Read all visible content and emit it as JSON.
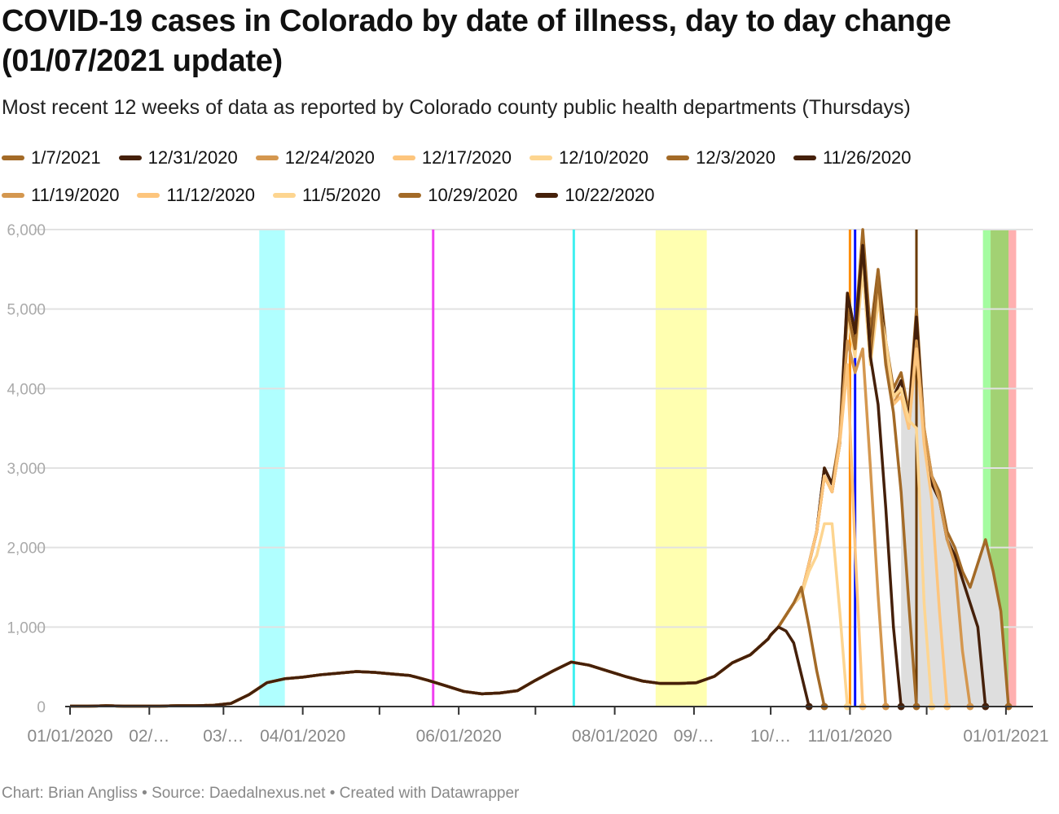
{
  "chart_data": {
    "type": "line",
    "title": "COVID-19 cases in Colorado by date of illness, day to day change (01/07/2021 update)",
    "subtitle": "Most recent 12 weeks of data as reported by Colorado county public health departments (Thursdays)",
    "footer": "Chart: Brian Angliss • Source: Daedalnexus.net • Created with Datawrapper",
    "xlabel": "",
    "ylabel": "",
    "ylim": [
      0,
      6000
    ],
    "xlim": [
      "2020-01-01",
      "2021-01-07"
    ],
    "y_ticks": [
      {
        "value": 0,
        "label": "0"
      },
      {
        "value": 1000,
        "label": "1,000"
      },
      {
        "value": 2000,
        "label": "2,000"
      },
      {
        "value": 3000,
        "label": "3,000"
      },
      {
        "value": 4000,
        "label": "4,000"
      },
      {
        "value": 5000,
        "label": "5,000"
      },
      {
        "value": 6000,
        "label": "6,000"
      }
    ],
    "x_tick_dates": [
      "2020-01-01",
      "2020-02-01",
      "2020-03-01",
      "2020-04-01",
      "2020-05-01",
      "2020-06-01",
      "2020-07-01",
      "2020-08-01",
      "2020-09-01",
      "2020-10-01",
      "2020-11-01",
      "2020-12-01",
      "2021-01-01"
    ],
    "x_labels": [
      {
        "date": "2020-01-01",
        "label": "01/01/2020"
      },
      {
        "date": "2020-02-01",
        "label": "02/…"
      },
      {
        "date": "2020-03-01",
        "label": "03/…"
      },
      {
        "date": "2020-04-01",
        "label": "04/01/2020"
      },
      {
        "date": "2020-06-01",
        "label": "06/01/2020"
      },
      {
        "date": "2020-08-01",
        "label": "08/01/2020"
      },
      {
        "date": "2020-09-01",
        "label": "09/…"
      },
      {
        "date": "2020-10-01",
        "label": "10/…"
      },
      {
        "date": "2020-11-01",
        "label": "11/01/2020"
      },
      {
        "date": "2021-01-01",
        "label": "01/01/2021"
      }
    ],
    "grid": true,
    "legend_position": "top-left",
    "shared_history": {
      "start": "2020-01-01",
      "step_days": 7,
      "values": [
        5,
        5,
        10,
        5,
        5,
        5,
        10,
        10,
        15,
        40,
        150,
        300,
        350,
        370,
        400,
        420,
        440,
        430,
        410,
        390,
        330,
        260,
        190,
        160,
        170,
        200,
        330,
        450,
        560,
        520,
        450,
        380,
        320,
        290,
        290,
        300,
        380,
        550,
        650,
        850
      ]
    },
    "recent_start": "2020-10-01",
    "recent_step_days": 3,
    "series": [
      {
        "name": "1/7/2021",
        "color": "#a36a27",
        "values": [
          900,
          1000,
          1150,
          1300,
          1400,
          1800,
          2200,
          3000,
          2800,
          3400,
          5200,
          4700,
          6000,
          4700,
          5500,
          4600,
          4000,
          4200,
          3700,
          5000,
          3500,
          2900,
          2700,
          2200,
          2000,
          1700,
          1500,
          1800,
          2100,
          1700,
          1200,
          0
        ]
      },
      {
        "name": "12/31/2020",
        "color": "#45200a",
        "values": [
          900,
          1000,
          1150,
          1300,
          1400,
          1800,
          2200,
          3000,
          2800,
          3300,
          5100,
          4600,
          5800,
          4500,
          5400,
          4500,
          3900,
          4100,
          3600,
          4900,
          3400,
          2800,
          2600,
          2100,
          1900,
          1600,
          1300,
          1000,
          0
        ]
      },
      {
        "name": "12/24/2020",
        "color": "#d4974f",
        "values": [
          900,
          1000,
          1150,
          1300,
          1400,
          1800,
          2200,
          2900,
          2700,
          3300,
          5000,
          4500,
          5700,
          4400,
          5300,
          4400,
          3800,
          4000,
          3500,
          4600,
          3500,
          2900,
          2600,
          2100,
          1800,
          700,
          0
        ]
      },
      {
        "name": "12/17/2020",
        "color": "#fdc57d",
        "values": [
          900,
          1000,
          1150,
          1300,
          1400,
          1800,
          2200,
          2900,
          2700,
          3300,
          5000,
          4500,
          5600,
          4400,
          5200,
          4300,
          3800,
          3900,
          3500,
          4500,
          3300,
          2600,
          1200,
          0
        ]
      },
      {
        "name": "12/10/2020",
        "color": "#fdd590",
        "values": [
          900,
          1000,
          1150,
          1300,
          1400,
          1800,
          2200,
          2900,
          2700,
          3300,
          4900,
          4400,
          5500,
          4300,
          5100,
          4600,
          3900,
          4000,
          3600,
          3500,
          1300,
          0
        ]
      },
      {
        "name": "12/3/2020",
        "color": "#a36a27",
        "values": [
          900,
          1000,
          1150,
          1300,
          1400,
          1800,
          2200,
          2900,
          2700,
          3300,
          5000,
          4500,
          5800,
          4400,
          5400,
          4300,
          3700,
          2700,
          1300,
          0
        ]
      },
      {
        "name": "11/26/2020",
        "color": "#45200a",
        "values": [
          900,
          1000,
          1150,
          1300,
          1400,
          1800,
          2200,
          3000,
          2800,
          3300,
          5200,
          4700,
          5800,
          4400,
          3800,
          2500,
          1000,
          0
        ]
      },
      {
        "name": "11/19/2020",
        "color": "#d4974f",
        "values": [
          900,
          1000,
          1150,
          1300,
          1400,
          1800,
          2200,
          2900,
          2700,
          3400,
          4600,
          4200,
          4500,
          3000,
          1400,
          0
        ]
      },
      {
        "name": "11/12/2020",
        "color": "#fdc57d",
        "values": [
          900,
          1000,
          1150,
          1300,
          1400,
          1800,
          2200,
          2900,
          2700,
          3300,
          4300,
          2000,
          0
        ]
      },
      {
        "name": "11/5/2020",
        "color": "#fdd590",
        "values": [
          900,
          1000,
          1150,
          1300,
          1400,
          1700,
          1900,
          2300,
          2300,
          1200,
          0
        ]
      },
      {
        "name": "10/29/2020",
        "color": "#a36a27",
        "values": [
          900,
          1000,
          1150,
          1300,
          1500,
          1000,
          450,
          0
        ]
      },
      {
        "name": "10/22/2020",
        "color": "#45200a",
        "values": [
          900,
          1000,
          950,
          800,
          400,
          0
        ]
      }
    ],
    "annotations": {
      "bands": [
        {
          "from": "2020-03-15",
          "to": "2020-03-25",
          "color": "#b0ffff"
        },
        {
          "from": "2020-08-17",
          "to": "2020-09-06",
          "color": "#ffffb0"
        },
        {
          "from": "2020-12-23",
          "to": "2020-12-26",
          "color": "#a4fca0"
        },
        {
          "from": "2020-12-26",
          "to": "2021-01-02",
          "color": "#a2d173"
        },
        {
          "from": "2021-01-02",
          "to": "2021-01-05",
          "color": "#ffb0b0"
        }
      ],
      "lines": [
        {
          "date": "2020-05-22",
          "color": "#f040f0"
        },
        {
          "date": "2020-07-16",
          "color": "#40f0f0"
        },
        {
          "date": "2020-11-01",
          "color": "#ff8c00"
        },
        {
          "date": "2020-11-03",
          "color": "#0010ff"
        },
        {
          "date": "2020-11-27",
          "color": "#6b3a00"
        }
      ]
    }
  }
}
